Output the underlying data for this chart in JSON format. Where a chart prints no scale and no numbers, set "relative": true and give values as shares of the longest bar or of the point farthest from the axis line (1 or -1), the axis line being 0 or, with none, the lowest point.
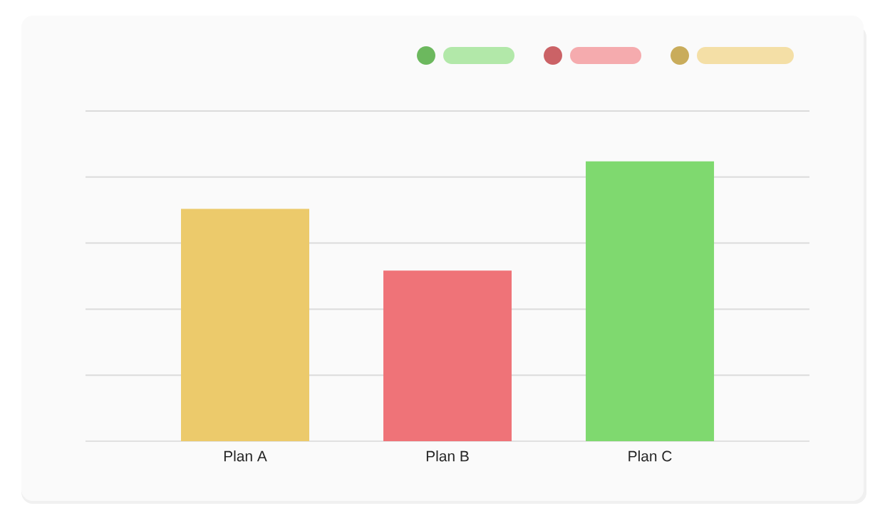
{
  "chart_data": {
    "type": "bar",
    "relative": true,
    "categories": [
      "Plan A",
      "Plan B",
      "Plan C"
    ],
    "values": [
      0.83,
      0.61,
      1
    ],
    "colors": [
      "#ecca6b",
      "#ef7378",
      "#7fd96f"
    ],
    "grid": "y"
  }
}
